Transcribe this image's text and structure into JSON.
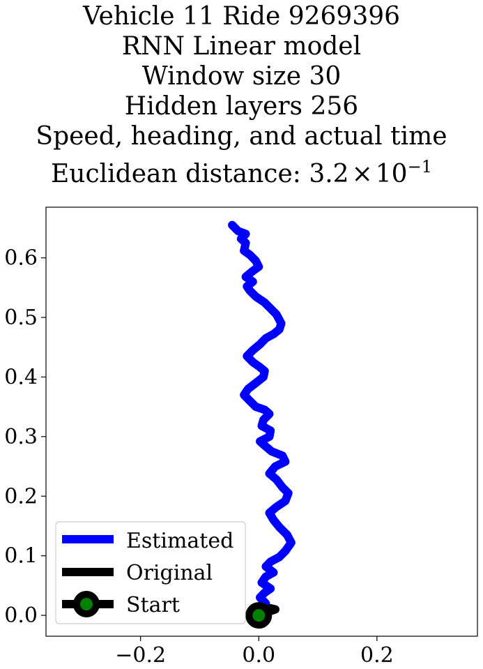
{
  "chart_data": {
    "type": "line",
    "title_lines": [
      "Vehicle 11 Ride 9269396",
      "RNN Linear model",
      "Window size 30",
      "Hidden layers 256",
      "Speed, heading, and actual time"
    ],
    "distance_label": "Euclidean distance: ",
    "distance_mantissa": "3.2",
    "distance_times": "×",
    "distance_base": "10",
    "distance_exponent": "−1",
    "xlim": [
      -0.36,
      0.37
    ],
    "ylim": [
      -0.035,
      0.685
    ],
    "x_ticks": [
      -0.2,
      0.0,
      0.2
    ],
    "x_tick_labels": [
      "−0.2",
      "0.0",
      "0.2"
    ],
    "y_ticks": [
      0.0,
      0.1,
      0.2,
      0.3,
      0.4,
      0.5,
      0.6
    ],
    "y_tick_labels": [
      "0.0",
      "0.1",
      "0.2",
      "0.3",
      "0.4",
      "0.5",
      "0.6"
    ],
    "grid": false,
    "legend_position": "lower-left",
    "colors": {
      "estimated": "#0000ff",
      "original": "#000000",
      "start_marker": "#000000",
      "start_fill": "#008000"
    },
    "series": [
      {
        "name": "Estimated",
        "points": [
          [
            0.0,
            0.0
          ],
          [
            0.005,
            0.01
          ],
          [
            0.012,
            0.02
          ],
          [
            0.002,
            0.03
          ],
          [
            0.01,
            0.038
          ],
          [
            0.02,
            0.045
          ],
          [
            0.005,
            0.055
          ],
          [
            0.012,
            0.065
          ],
          [
            0.025,
            0.072
          ],
          [
            0.012,
            0.082
          ],
          [
            0.02,
            0.09
          ],
          [
            0.035,
            0.098
          ],
          [
            0.045,
            0.108
          ],
          [
            0.055,
            0.122
          ],
          [
            0.048,
            0.135
          ],
          [
            0.035,
            0.148
          ],
          [
            0.025,
            0.16
          ],
          [
            0.018,
            0.172
          ],
          [
            0.03,
            0.182
          ],
          [
            0.045,
            0.192
          ],
          [
            0.05,
            0.205
          ],
          [
            0.04,
            0.215
          ],
          [
            0.03,
            0.228
          ],
          [
            0.018,
            0.238
          ],
          [
            0.028,
            0.25
          ],
          [
            0.045,
            0.258
          ],
          [
            0.04,
            0.268
          ],
          [
            0.022,
            0.275
          ],
          [
            0.01,
            0.285
          ],
          [
            0.002,
            0.292
          ],
          [
            0.018,
            0.3
          ],
          [
            0.02,
            0.31
          ],
          [
            0.005,
            0.318
          ],
          [
            0.008,
            0.328
          ],
          [
            0.018,
            0.338
          ],
          [
            0.01,
            0.345
          ],
          [
            -0.005,
            0.35
          ],
          [
            -0.015,
            0.36
          ],
          [
            -0.025,
            0.37
          ],
          [
            -0.018,
            0.38
          ],
          [
            -0.005,
            0.39
          ],
          [
            0.008,
            0.4
          ],
          [
            0.01,
            0.41
          ],
          [
            0.0,
            0.418
          ],
          [
            -0.01,
            0.425
          ],
          [
            -0.02,
            0.435
          ],
          [
            -0.01,
            0.445
          ],
          [
            0.002,
            0.455
          ],
          [
            0.012,
            0.465
          ],
          [
            0.025,
            0.472
          ],
          [
            0.035,
            0.48
          ],
          [
            0.038,
            0.49
          ],
          [
            0.03,
            0.505
          ],
          [
            0.02,
            0.515
          ],
          [
            0.01,
            0.525
          ],
          [
            -0.005,
            0.535
          ],
          [
            -0.015,
            0.545
          ],
          [
            -0.02,
            0.552
          ],
          [
            -0.01,
            0.56
          ],
          [
            -0.022,
            0.568
          ],
          [
            -0.01,
            0.578
          ],
          [
            0.0,
            0.585
          ],
          [
            -0.005,
            0.595
          ],
          [
            -0.015,
            0.605
          ],
          [
            -0.025,
            0.612
          ],
          [
            -0.022,
            0.625
          ],
          [
            -0.03,
            0.632
          ],
          [
            -0.022,
            0.64
          ],
          [
            -0.035,
            0.645
          ],
          [
            -0.045,
            0.655
          ]
        ]
      },
      {
        "name": "Original",
        "points": [
          [
            0.0,
            0.0
          ],
          [
            0.005,
            0.006
          ],
          [
            0.012,
            0.01
          ],
          [
            0.02,
            0.012
          ],
          [
            0.028,
            0.01
          ],
          [
            0.022,
            0.008
          ],
          [
            0.012,
            0.011
          ],
          [
            0.004,
            0.014
          ]
        ]
      },
      {
        "name": "Start",
        "points": [
          [
            0.0,
            0.0
          ]
        ]
      }
    ]
  }
}
